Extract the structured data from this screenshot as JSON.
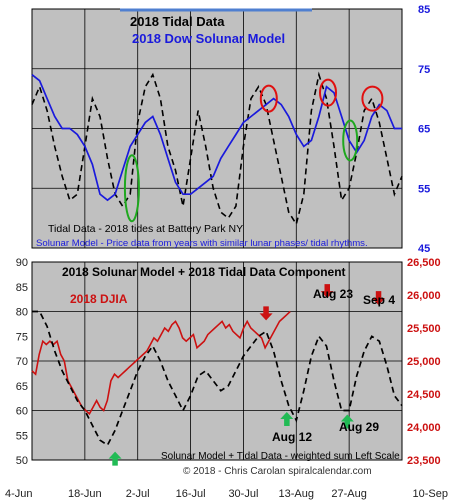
{
  "colors": {
    "plot_bg": "#c0c0c0",
    "grid": "#000000",
    "tidal": "#000000",
    "solunar": "#1a1adc",
    "djia": "#cc1111",
    "circle_red": "#e01010",
    "circle_green": "#1fa81f",
    "arrow_red": "#cc1111",
    "arrow_green": "#22bb55",
    "top_right_axis": "#1a1adc",
    "bottom_right_axis": "#cc1111"
  },
  "chart_data": [
    {
      "type": "line",
      "title": "2018 Tidal Data",
      "subtitle": "2018 Dow Solunar Model",
      "annotations": [
        "Tidal Data - 2018 tides at Battery Park NY",
        "Solunar Model - Price data from years with similar lunar phases/ tidal rhythms."
      ],
      "right_axis": {
        "ylim": [
          45,
          85
        ],
        "ticks": [
          "45",
          "55",
          "65",
          "75",
          "85"
        ]
      },
      "grid": true,
      "series": [
        {
          "x": [
            0,
            2,
            4,
            6,
            8,
            10,
            12,
            14,
            16,
            18,
            20,
            22,
            24,
            26,
            28,
            30,
            32,
            34,
            36,
            38,
            40,
            42,
            44,
            46,
            48,
            50,
            52,
            54,
            56,
            58,
            60,
            62,
            64,
            66,
            68,
            70,
            72,
            74,
            76,
            78,
            80,
            82,
            84,
            86,
            88,
            90,
            92,
            94,
            96,
            98
          ],
          "values": [
            69,
            72,
            68,
            62,
            57,
            53,
            54,
            62,
            70,
            67,
            60,
            54,
            52,
            54,
            66,
            72,
            74,
            70,
            62,
            58,
            52,
            60,
            68,
            62,
            55,
            51,
            50,
            52,
            62,
            70,
            72,
            69,
            63,
            57,
            51,
            49,
            54,
            68,
            74,
            70,
            62,
            53,
            55,
            61,
            68,
            70,
            66,
            60,
            54,
            57
          ]
        },
        {
          "x": [
            0,
            2,
            4,
            6,
            8,
            10,
            12,
            14,
            16,
            18,
            20,
            22,
            24,
            26,
            28,
            30,
            32,
            34,
            36,
            38,
            40,
            42,
            44,
            46,
            48,
            50,
            52,
            54,
            56,
            58,
            60,
            62,
            64,
            66,
            68,
            70,
            72,
            74,
            76,
            78,
            80,
            82,
            84,
            86,
            88,
            90,
            92,
            94,
            96,
            98
          ],
          "values": [
            74,
            73,
            70,
            67,
            65,
            65,
            64,
            62,
            59,
            54,
            53,
            54,
            58,
            62,
            64,
            66,
            67,
            64,
            60,
            56,
            54,
            54,
            55,
            56,
            57,
            60,
            62,
            64,
            66,
            67,
            68,
            69,
            70,
            69,
            67,
            64,
            62,
            63,
            67,
            72,
            71,
            67,
            63,
            61,
            63,
            67,
            69,
            68,
            65,
            65
          ]
        }
      ]
    },
    {
      "type": "line",
      "title": "2018 Solunar Model + 2018 Tidal Data Component",
      "legend": "2018 DJIA",
      "x_tick_labels": [
        "4-Jun",
        "18-Jun",
        "2-Jul",
        "16-Jul",
        "30-Jul",
        "13-Aug",
        "27-Aug",
        "10-Sep"
      ],
      "left_axis": {
        "ylim": [
          50,
          90
        ],
        "ticks": [
          "50",
          "55",
          "60",
          "65",
          "70",
          "75",
          "80",
          "85",
          "90"
        ]
      },
      "right_axis": {
        "ylim": [
          23500,
          26500
        ],
        "ticks": [
          "23,500",
          "24,000",
          "24,500",
          "25,000",
          "25,500",
          "26,000",
          "26,500"
        ]
      },
      "annotations": [
        "Aug 23",
        "Sep 4",
        "Aug 12",
        "Aug 29",
        "Solunar Model + Tidal Data - weighted sum Left Scale",
        "© 2018 - Chris Carolan   spiralcalendar.com"
      ],
      "grid": true,
      "series": [
        {
          "x": [
            0,
            2,
            4,
            6,
            8,
            10,
            12,
            14,
            16,
            18,
            20,
            22,
            24,
            26,
            28,
            30,
            32,
            34,
            36,
            38,
            40,
            42,
            44,
            46,
            48,
            50,
            52,
            54,
            56,
            58,
            60,
            62,
            64,
            66,
            68,
            70,
            72,
            74,
            76,
            78,
            80,
            82,
            84,
            86,
            88,
            90,
            92,
            94,
            96,
            98
          ],
          "values": [
            80,
            80,
            77,
            72,
            68,
            65,
            62,
            60,
            57,
            54,
            53,
            56,
            60,
            64,
            68,
            71,
            73,
            70,
            66,
            63,
            60,
            63,
            67,
            68,
            66,
            64,
            65,
            68,
            71,
            73,
            75,
            76,
            72,
            66,
            61,
            58,
            64,
            71,
            75,
            73,
            66,
            60,
            60,
            67,
            72,
            75,
            74,
            69,
            63,
            61
          ]
        },
        {
          "name": "2018 DJIA",
          "x": [
            0,
            1,
            2,
            3,
            4,
            5,
            6,
            7,
            8,
            9,
            10,
            11,
            12,
            13,
            14,
            15,
            16,
            17,
            18,
            19,
            20,
            21,
            22,
            23,
            24,
            25,
            26,
            27,
            28,
            29,
            30,
            31,
            32,
            33,
            34,
            35,
            36,
            37,
            38,
            39,
            40,
            41,
            42,
            43,
            44,
            45,
            46,
            47,
            48,
            49,
            50,
            51,
            52,
            53,
            54,
            55,
            56,
            57,
            58,
            59,
            60,
            61,
            62,
            63,
            64,
            65,
            66,
            67,
            68,
            69,
            70,
            71,
            72
          ],
          "values": [
            24850,
            24800,
            25100,
            25300,
            25250,
            25300,
            25250,
            25300,
            25100,
            25000,
            24700,
            24600,
            24500,
            24400,
            24300,
            24250,
            24200,
            24300,
            24400,
            24300,
            24250,
            24400,
            24700,
            24800,
            24750,
            24800,
            24850,
            24900,
            24950,
            25000,
            25050,
            25100,
            25150,
            25250,
            25350,
            25300,
            25400,
            25500,
            25450,
            25550,
            25600,
            25500,
            25350,
            25300,
            25350,
            25400,
            25200,
            25250,
            25300,
            25400,
            25450,
            25500,
            25550,
            25600,
            25500,
            25550,
            25450,
            25400,
            25350,
            25500,
            25600,
            25500,
            25450,
            25400,
            25350,
            25200,
            25300,
            25400,
            25500,
            25600,
            25650,
            25700,
            25750
          ]
        }
      ]
    }
  ]
}
